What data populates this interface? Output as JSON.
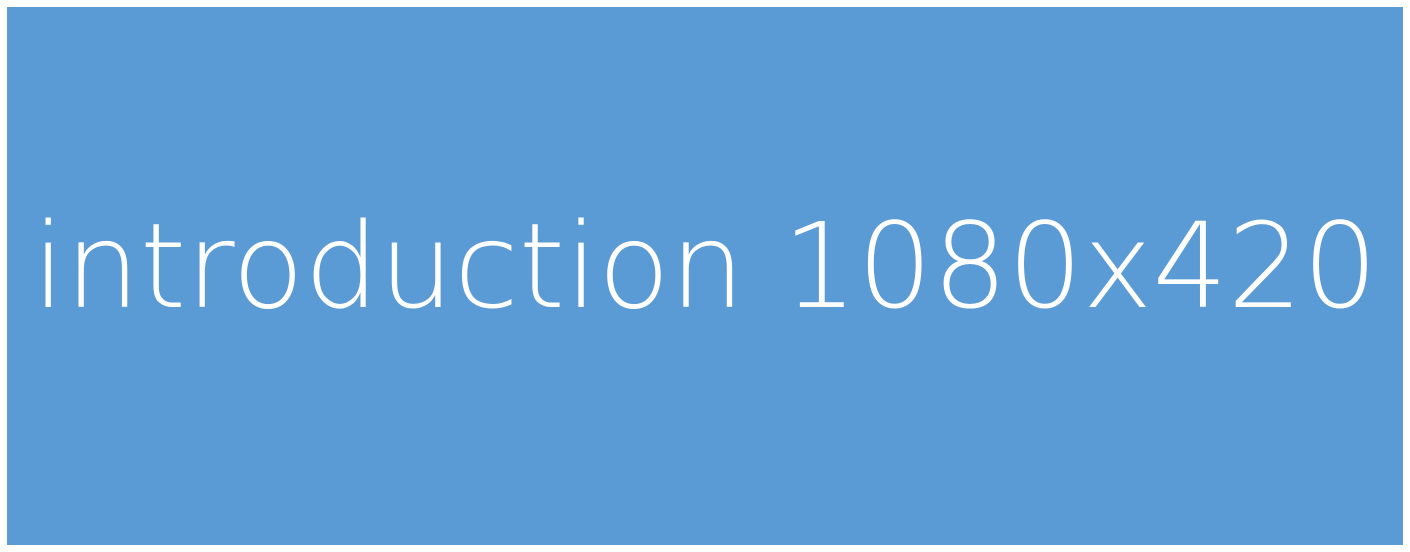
{
  "banner": {
    "text": "introduction 1080x420",
    "background_color": "#5B9BD5",
    "text_color": "#FFFFFF"
  },
  "page": {
    "background_color": "#FFFFFF"
  }
}
